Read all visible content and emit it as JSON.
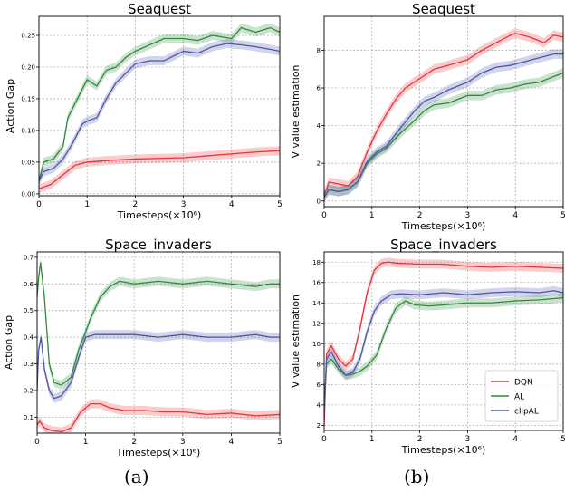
{
  "captions": [
    "(a)",
    "(b)"
  ],
  "colors": {
    "DQN": "#e8333c",
    "AL": "#2e8b3e",
    "clipAL": "#4c55a8"
  },
  "chart_data": [
    {
      "type": "line",
      "title": "Seaquest",
      "xlabel": "Timesteps(×10⁶)",
      "ylabel": "Action Gap",
      "xlim": [
        0,
        5
      ],
      "ylim": [
        -0.003,
        0.28
      ],
      "xticks": [
        0,
        1,
        2,
        3,
        4,
        5
      ],
      "yticks": [
        0.0,
        0.05,
        0.1,
        0.15,
        0.2,
        0.25
      ],
      "ytick_labels": [
        "0.00",
        "0.05",
        "0.10",
        "0.15",
        "0.20",
        "0.25"
      ],
      "grid": true,
      "series": [
        {
          "name": "DQN",
          "x": [
            0,
            0.25,
            0.5,
            0.75,
            1.0,
            1.5,
            2.0,
            2.5,
            3.0,
            3.5,
            4.0,
            4.5,
            5.0
          ],
          "values": [
            0.008,
            0.015,
            0.03,
            0.045,
            0.05,
            0.053,
            0.055,
            0.056,
            0.057,
            0.06,
            0.063,
            0.066,
            0.068
          ]
        },
        {
          "name": "AL",
          "x": [
            0,
            0.1,
            0.3,
            0.5,
            0.6,
            0.8,
            1.0,
            1.2,
            1.4,
            1.6,
            1.8,
            2.0,
            2.3,
            2.6,
            3.0,
            3.3,
            3.6,
            4.0,
            4.2,
            4.5,
            4.8,
            5.0
          ],
          "values": [
            0.02,
            0.05,
            0.055,
            0.075,
            0.12,
            0.15,
            0.18,
            0.17,
            0.195,
            0.2,
            0.215,
            0.225,
            0.235,
            0.245,
            0.245,
            0.242,
            0.25,
            0.245,
            0.262,
            0.255,
            0.262,
            0.255
          ]
        },
        {
          "name": "clipAL",
          "x": [
            0,
            0.1,
            0.3,
            0.5,
            0.7,
            0.9,
            1.0,
            1.2,
            1.4,
            1.6,
            1.8,
            2.0,
            2.3,
            2.6,
            3.0,
            3.3,
            3.6,
            3.9,
            4.2,
            4.5,
            4.8,
            5.0
          ],
          "values": [
            0.02,
            0.035,
            0.04,
            0.055,
            0.08,
            0.11,
            0.115,
            0.12,
            0.15,
            0.175,
            0.19,
            0.205,
            0.21,
            0.21,
            0.225,
            0.222,
            0.232,
            0.237,
            0.235,
            0.232,
            0.228,
            0.225
          ]
        }
      ]
    },
    {
      "type": "line",
      "title": "Seaquest",
      "xlabel": "Timesteps(×10⁶)",
      "ylabel": "V value estimation",
      "xlim": [
        0,
        5
      ],
      "ylim": [
        -0.3,
        9.8
      ],
      "xticks": [
        0,
        1,
        2,
        3,
        4,
        5
      ],
      "yticks": [
        0,
        2,
        4,
        6,
        8
      ],
      "grid": true,
      "series": [
        {
          "name": "DQN",
          "x": [
            0,
            0.1,
            0.3,
            0.5,
            0.7,
            0.9,
            1.1,
            1.3,
            1.5,
            1.7,
            2.0,
            2.3,
            2.6,
            3.0,
            3.3,
            3.6,
            3.9,
            4.0,
            4.3,
            4.6,
            4.8,
            5.0
          ],
          "values": [
            0.3,
            1.0,
            0.9,
            0.8,
            1.3,
            2.6,
            3.7,
            4.6,
            5.4,
            6.0,
            6.5,
            7.0,
            7.2,
            7.5,
            8.0,
            8.4,
            8.8,
            8.9,
            8.7,
            8.4,
            8.8,
            8.7
          ]
        },
        {
          "name": "AL",
          "x": [
            0,
            0.1,
            0.3,
            0.5,
            0.7,
            0.9,
            1.1,
            1.3,
            1.6,
            1.9,
            2.1,
            2.3,
            2.6,
            3.0,
            3.3,
            3.6,
            3.9,
            4.2,
            4.5,
            4.8,
            5.0
          ],
          "values": [
            0.2,
            0.6,
            0.5,
            0.6,
            1.0,
            2.0,
            2.5,
            2.8,
            3.6,
            4.3,
            4.8,
            5.1,
            5.2,
            5.6,
            5.6,
            5.9,
            6.0,
            6.2,
            6.3,
            6.6,
            6.8
          ]
        },
        {
          "name": "clipAL",
          "x": [
            0,
            0.1,
            0.3,
            0.5,
            0.7,
            0.9,
            1.1,
            1.3,
            1.6,
            1.9,
            2.1,
            2.3,
            2.6,
            3.0,
            3.3,
            3.6,
            3.9,
            4.2,
            4.5,
            4.8,
            5.0
          ],
          "values": [
            0.2,
            0.6,
            0.5,
            0.6,
            1.0,
            2.1,
            2.6,
            2.9,
            3.9,
            4.8,
            5.3,
            5.5,
            5.9,
            6.3,
            6.8,
            7.1,
            7.2,
            7.4,
            7.6,
            7.8,
            7.8
          ]
        }
      ]
    },
    {
      "type": "line",
      "title": "Space_invaders",
      "xlabel": "Timesteps(×10⁶)",
      "ylabel": "Action Gap",
      "xlim": [
        0,
        5
      ],
      "ylim": [
        0.04,
        0.72
      ],
      "xticks": [
        0,
        1,
        2,
        3,
        4,
        5
      ],
      "yticks": [
        0.1,
        0.2,
        0.3,
        0.4,
        0.5,
        0.6,
        0.7
      ],
      "grid": true,
      "series": [
        {
          "name": "DQN",
          "x": [
            0,
            0.05,
            0.15,
            0.3,
            0.5,
            0.7,
            0.9,
            1.1,
            1.3,
            1.5,
            1.8,
            2.2,
            2.6,
            3.0,
            3.5,
            4.0,
            4.5,
            5.0
          ],
          "values": [
            0.07,
            0.085,
            0.06,
            0.05,
            0.045,
            0.06,
            0.12,
            0.15,
            0.15,
            0.135,
            0.125,
            0.125,
            0.12,
            0.12,
            0.11,
            0.115,
            0.105,
            0.11
          ]
        },
        {
          "name": "AL",
          "x": [
            0,
            0.03,
            0.07,
            0.15,
            0.25,
            0.35,
            0.5,
            0.7,
            0.85,
            1.0,
            1.1,
            1.2,
            1.3,
            1.5,
            1.7,
            2.0,
            2.5,
            3.0,
            3.5,
            4.0,
            4.5,
            4.8,
            5.0
          ],
          "values": [
            0.55,
            0.62,
            0.68,
            0.55,
            0.3,
            0.23,
            0.22,
            0.25,
            0.35,
            0.42,
            0.47,
            0.51,
            0.55,
            0.59,
            0.61,
            0.6,
            0.61,
            0.6,
            0.61,
            0.6,
            0.59,
            0.6,
            0.6
          ]
        },
        {
          "name": "clipAL",
          "x": [
            0,
            0.03,
            0.08,
            0.15,
            0.25,
            0.35,
            0.5,
            0.7,
            0.85,
            1.0,
            1.2,
            1.5,
            2.0,
            2.5,
            3.0,
            3.5,
            4.0,
            4.5,
            4.8,
            5.0
          ],
          "values": [
            0.2,
            0.35,
            0.4,
            0.28,
            0.2,
            0.17,
            0.18,
            0.23,
            0.32,
            0.4,
            0.41,
            0.41,
            0.41,
            0.4,
            0.41,
            0.4,
            0.4,
            0.41,
            0.4,
            0.4
          ]
        }
      ]
    },
    {
      "type": "line",
      "title": "Space_invaders",
      "xlabel": "Timesteps(×10⁶)",
      "ylabel": "V value estimation",
      "xlim": [
        0,
        5
      ],
      "ylim": [
        1.5,
        19.0
      ],
      "xticks": [
        0,
        1,
        2,
        3,
        4,
        5
      ],
      "yticks": [
        2,
        4,
        6,
        8,
        10,
        12,
        14,
        16,
        18
      ],
      "grid": true,
      "legend": {
        "position": "lower-right",
        "entries": [
          "DQN",
          "AL",
          "clipAL"
        ]
      },
      "series": [
        {
          "name": "DQN",
          "x": [
            0,
            0.05,
            0.15,
            0.3,
            0.45,
            0.6,
            0.75,
            0.9,
            1.05,
            1.2,
            1.35,
            1.5,
            2.0,
            2.5,
            3.0,
            3.5,
            4.0,
            4.5,
            5.0
          ],
          "values": [
            2.0,
            9.0,
            9.8,
            8.5,
            7.8,
            8.5,
            11.5,
            15.0,
            17.2,
            17.9,
            18.0,
            17.9,
            17.8,
            17.8,
            17.6,
            17.5,
            17.6,
            17.5,
            17.4
          ]
        },
        {
          "name": "AL",
          "x": [
            0,
            0.05,
            0.15,
            0.3,
            0.45,
            0.6,
            0.75,
            0.9,
            1.1,
            1.3,
            1.5,
            1.7,
            1.9,
            2.2,
            2.5,
            3.0,
            3.5,
            4.0,
            4.5,
            5.0
          ],
          "values": [
            3.5,
            8.0,
            8.5,
            7.5,
            6.9,
            7.0,
            7.3,
            7.8,
            8.9,
            11.5,
            13.5,
            14.2,
            13.8,
            13.7,
            13.8,
            14.0,
            14.0,
            14.2,
            14.3,
            14.5
          ]
        },
        {
          "name": "clipAL",
          "x": [
            0,
            0.05,
            0.15,
            0.3,
            0.45,
            0.6,
            0.75,
            0.9,
            1.05,
            1.2,
            1.4,
            1.6,
            2.0,
            2.5,
            3.0,
            3.5,
            4.0,
            4.5,
            4.8,
            5.0
          ],
          "values": [
            3.5,
            8.5,
            9.2,
            7.8,
            6.9,
            7.2,
            8.5,
            11.2,
            13.2,
            14.2,
            14.8,
            14.9,
            14.8,
            15.0,
            14.8,
            15.0,
            15.1,
            15.0,
            15.2,
            15.0
          ]
        }
      ]
    }
  ]
}
